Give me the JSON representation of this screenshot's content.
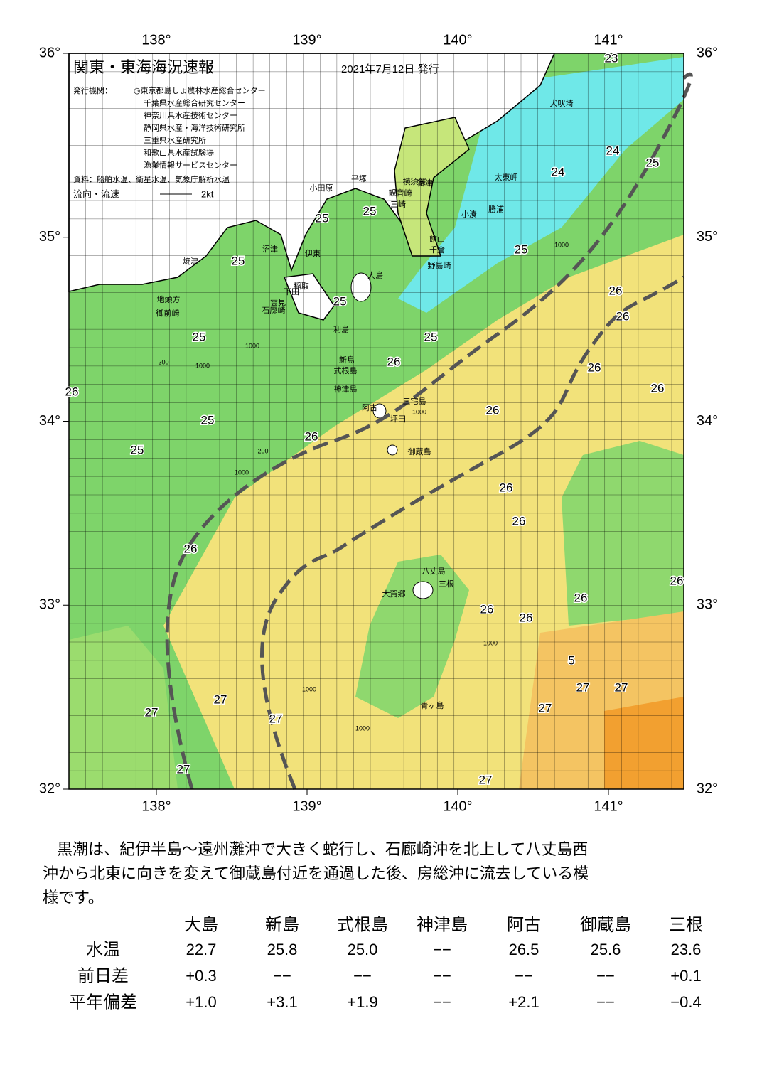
{
  "header": {
    "title": "関東・東海海況速報",
    "date": "2021年7月12日 発行",
    "issuer_label": "発行機関：",
    "issuers": [
      "◎東京都島しょ農林水産総合センター",
      "千葉県水産総合研究センター",
      "神奈川県水産技術センター",
      "静岡県水産・海洋技術研究所",
      "三重県水産研究所",
      "和歌山県水産試験場",
      "漁業情報サービスセンター"
    ],
    "sources": "資料：船舶水温、衛星水温、気象庁解析水温",
    "flow_label": "流向・流速",
    "flow_scale": "2kt"
  },
  "map": {
    "lon_ticks": [
      {
        "value": 138,
        "label": "138°"
      },
      {
        "value": 139,
        "label": "139°"
      },
      {
        "value": 140,
        "label": "140°"
      },
      {
        "value": 141,
        "label": "141°"
      }
    ],
    "lat_ticks": [
      {
        "value": 36,
        "label": "36°"
      },
      {
        "value": 35,
        "label": "35°"
      },
      {
        "value": 34,
        "label": "34°"
      },
      {
        "value": 33,
        "label": "33°"
      },
      {
        "value": 32,
        "label": "32°"
      }
    ],
    "places": [
      "犬吠埼",
      "太東岬",
      "勝浦",
      "小湊",
      "館山",
      "千倉",
      "野島崎",
      "富津",
      "横須賀",
      "観音崎",
      "三崎",
      "平塚",
      "小田原",
      "伊東",
      "沼津",
      "焼津",
      "地頭方",
      "御前崎",
      "石廊崎",
      "下田",
      "稲取",
      "雲見",
      "大島",
      "利島",
      "新島",
      "式根島",
      "神津島",
      "三宅島",
      "阿古",
      "坪田",
      "御蔵島",
      "八丈島",
      "三根",
      "大賀郷",
      "青ヶ島"
    ],
    "temperature_labels": [
      "23",
      "24",
      "24",
      "25",
      "25",
      "25",
      "25",
      "25",
      "25",
      "25",
      "25",
      "25",
      "25",
      "26",
      "26",
      "26",
      "26",
      "26",
      "26",
      "26",
      "26",
      "26",
      "26",
      "26",
      "26",
      "26",
      "26",
      "26",
      "5",
      "27",
      "27",
      "27",
      "27",
      "27",
      "27",
      "27",
      "27"
    ],
    "depth_labels": [
      "1000",
      "200",
      "1000",
      "1000",
      "200",
      "1000",
      "1000",
      "1000",
      "1000",
      "1000"
    ]
  },
  "summary": [
    "黒潮は、紀伊半島～遠州灘沖で大きく蛇行し、石廊崎沖を北上して八丈島西",
    "沖から北東に向きを変えて御蔵島付近を通過した後、房総沖に流去している模",
    "様です。"
  ],
  "table": {
    "columns": [
      "大島",
      "新島",
      "式根島",
      "神津島",
      "阿古",
      "御蔵島",
      "三根"
    ],
    "rows": [
      {
        "label": "水温",
        "values": [
          "22.7",
          "25.8",
          "25.0",
          "−−",
          "26.5",
          "25.6",
          "23.6"
        ]
      },
      {
        "label": "前日差",
        "values": [
          "+0.3",
          "−−",
          "−−",
          "−−",
          "−−",
          "−−",
          "+0.1"
        ]
      },
      {
        "label": "平年偏差",
        "values": [
          "+1.0",
          "+3.1",
          "+1.9",
          "−−",
          "+2.1",
          "−−",
          "−0.4"
        ]
      }
    ]
  }
}
